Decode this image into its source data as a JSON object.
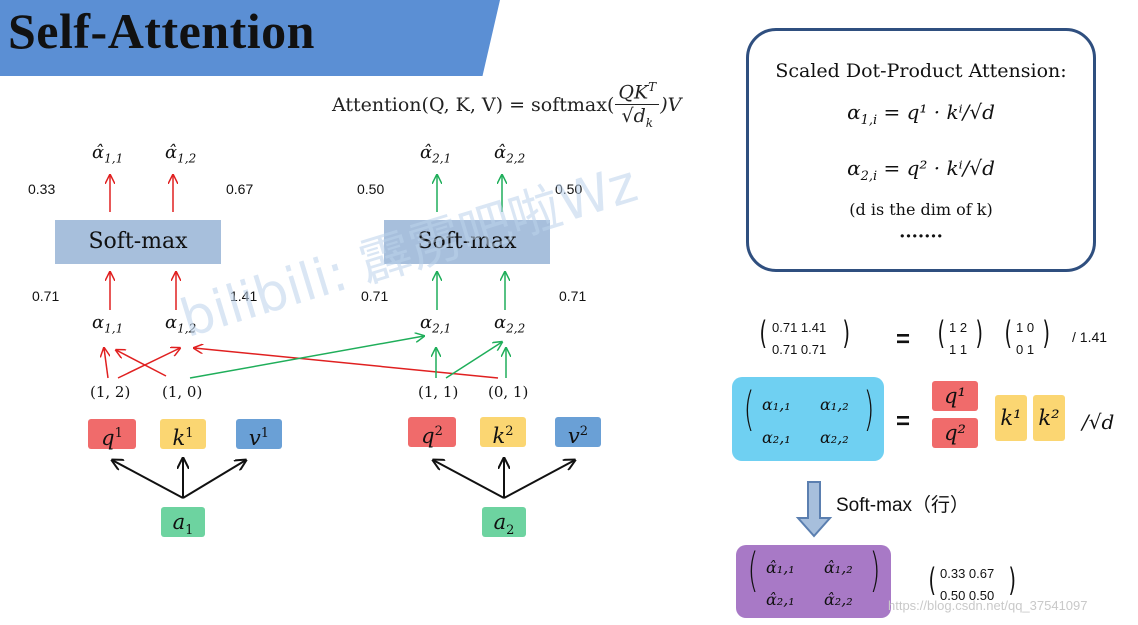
{
  "banner": {
    "title": "Self-Attention",
    "color": "#5b8fd4"
  },
  "formula": {
    "lhs": "Attention(Q, K, V) = softmax(",
    "num": "QK",
    "sup": "T",
    "den": "√d",
    "den_sub": "k",
    "rhs": ")V"
  },
  "box": {
    "title": "Scaled Dot-Product Attension:",
    "eq1": {
      "lhs": "α",
      "sub": "1,i",
      "rhs": " = q¹ · kⁱ/√d"
    },
    "eq2": {
      "lhs": "α",
      "sub": "2,i",
      "rhs": " = q² · kⁱ/√d"
    },
    "note": "(d is the dim of k)",
    "dots": "·······"
  },
  "left_branch": {
    "softmax": "Soft-max",
    "hat1": {
      "base": "α̂",
      "sub": "1,1"
    },
    "hat2": {
      "base": "α̂",
      "sub": "1,2"
    },
    "out_left": "0.33",
    "out_right": "0.67",
    "in_left": "0.71",
    "in_right": "1.41",
    "a1": {
      "base": "α",
      "sub": "1,1"
    },
    "a2": {
      "base": "α",
      "sub": "1,2"
    },
    "c1": "(1, 2)",
    "c2": "(1, 0)",
    "q": {
      "base": "q",
      "sup": "1"
    },
    "k": {
      "base": "k",
      "sup": "1"
    },
    "v": {
      "base": "v",
      "sup": "1"
    },
    "a": {
      "base": "a",
      "sub": "1"
    }
  },
  "right_branch": {
    "softmax": "Soft-max",
    "hat1": {
      "base": "α̂",
      "sub": "2,1"
    },
    "hat2": {
      "base": "α̂",
      "sub": "2,2"
    },
    "out_left": "0.50",
    "out_right": "0.50",
    "in_left": "0.71",
    "in_right": "0.71",
    "a1": {
      "base": "α",
      "sub": "2,1"
    },
    "a2": {
      "base": "α",
      "sub": "2,2"
    },
    "c1": "(1, 1)",
    "c2": "(0, 1)",
    "q": {
      "base": "q",
      "sup": "2"
    },
    "k": {
      "base": "k",
      "sup": "2"
    },
    "v": {
      "base": "v",
      "sup": "2"
    },
    "a": {
      "base": "a",
      "sub": "2"
    }
  },
  "matrix_eq": {
    "lhs_r1": "0.71  1.41",
    "lhs_r2": "0.71  0.71",
    "equals": "=",
    "m1_r1": "1  2",
    "m1_r2": "1  1",
    "m2_r1": "1  0",
    "m2_r2": "0  1",
    "divisor": "/ 1.41"
  },
  "matrix_block": {
    "a11": "α₁,₁",
    "a12": "α₁,₂",
    "a21": "α₂,₁",
    "a22": "α₂,₂",
    "equals": "=",
    "q1": "q¹",
    "q2": "q²",
    "k1": "k¹",
    "k2": "k²",
    "divisor": "/√d"
  },
  "softmax_step": {
    "label": "Soft-max（行）"
  },
  "result": {
    "h11": "α̂₁,₁",
    "h12": "α̂₁,₂",
    "h21": "α̂₂,₁",
    "h22": "α̂₂,₂",
    "r1": "0.33  0.67",
    "r2": "0.50  0.50"
  },
  "watermark": "bilibili: 霹雳吧啦Wz",
  "url": "https://blog.csdn.net/qq_37541097",
  "colors": {
    "red": "#e02020",
    "green": "#1fae5a",
    "q": "#f06b6b",
    "k": "#fbd672",
    "v": "#6aa0d6",
    "a": "#6dd3a0",
    "mat_blue": "#6fd0f2",
    "mat_purple": "#a879c6"
  }
}
